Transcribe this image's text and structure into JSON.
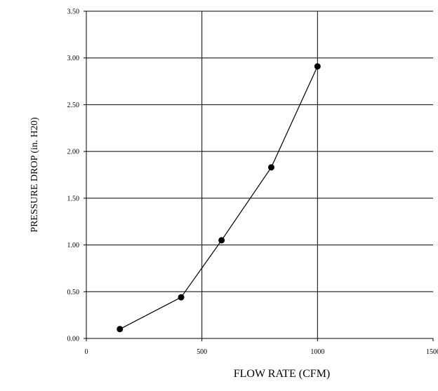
{
  "chart_data": {
    "type": "line",
    "title": "",
    "xlabel": "FLOW RATE (CFM)",
    "ylabel": "PRESSURE DROP (in. H20)",
    "xlim": [
      0,
      1500
    ],
    "ylim": [
      0,
      3.5
    ],
    "x_ticks": [
      "0",
      "500",
      "1000",
      "1500"
    ],
    "y_ticks": [
      "0.00",
      "0.50",
      "1.00",
      "1.50",
      "2.00",
      "2.50",
      "3.00",
      "3.50"
    ],
    "grid": true,
    "series": [
      {
        "x": [
          145,
          410,
          585,
          800,
          1000
        ],
        "y": [
          0.1,
          0.44,
          1.05,
          1.83,
          2.91
        ]
      }
    ],
    "line_color": "#000000",
    "marker_color": "#000000"
  }
}
